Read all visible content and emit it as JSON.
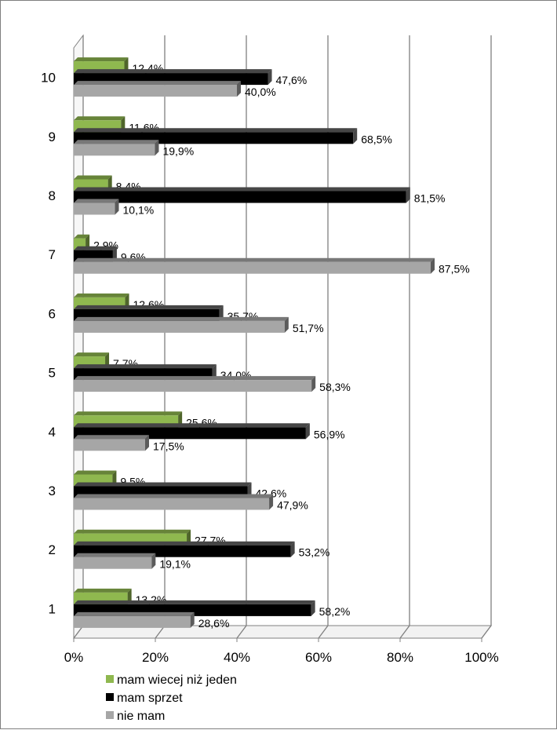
{
  "chart_data": {
    "type": "bar",
    "orientation": "horizontal",
    "style": "3d-clustered",
    "categories": [
      "1",
      "2",
      "3",
      "4",
      "5",
      "6",
      "7",
      "8",
      "9",
      "10"
    ],
    "series": [
      {
        "name": "mam wiecej niż jeden",
        "color": "#8fb84f",
        "values": [
          13.2,
          27.7,
          9.5,
          25.6,
          7.7,
          12.6,
          2.9,
          8.4,
          11.6,
          12.4
        ],
        "labels": [
          "13,2%",
          "27,7%",
          "9,5%",
          "25,6%",
          "7,7%",
          "12,6%",
          "2,9%",
          "8,4%",
          "11,6%",
          "12,4%"
        ]
      },
      {
        "name": "mam sprzet",
        "color": "#000000",
        "values": [
          58.2,
          53.2,
          42.6,
          56.9,
          34.0,
          35.7,
          9.6,
          81.5,
          68.5,
          47.6
        ],
        "labels": [
          "58,2%",
          "53,2%",
          "42,6%",
          "56,9%",
          "34,0%",
          "35,7%",
          "9,6%",
          "81,5%",
          "68,5%",
          "47,6%"
        ]
      },
      {
        "name": "nie mam",
        "color": "#a6a6a6",
        "values": [
          28.6,
          19.1,
          47.9,
          17.5,
          58.3,
          51.7,
          87.5,
          10.1,
          19.9,
          40.0
        ],
        "labels": [
          "28,6%",
          "19,1%",
          "47,9%",
          "17,5%",
          "58,3%",
          "51,7%",
          "87,5%",
          "10,1%",
          "19,9%",
          "40,0%"
        ]
      }
    ],
    "xlim": [
      0,
      100
    ],
    "x_ticks": [
      "0%",
      "20%",
      "40%",
      "60%",
      "80%",
      "100%"
    ],
    "grid": "vertical",
    "legend_position": "bottom-left"
  }
}
